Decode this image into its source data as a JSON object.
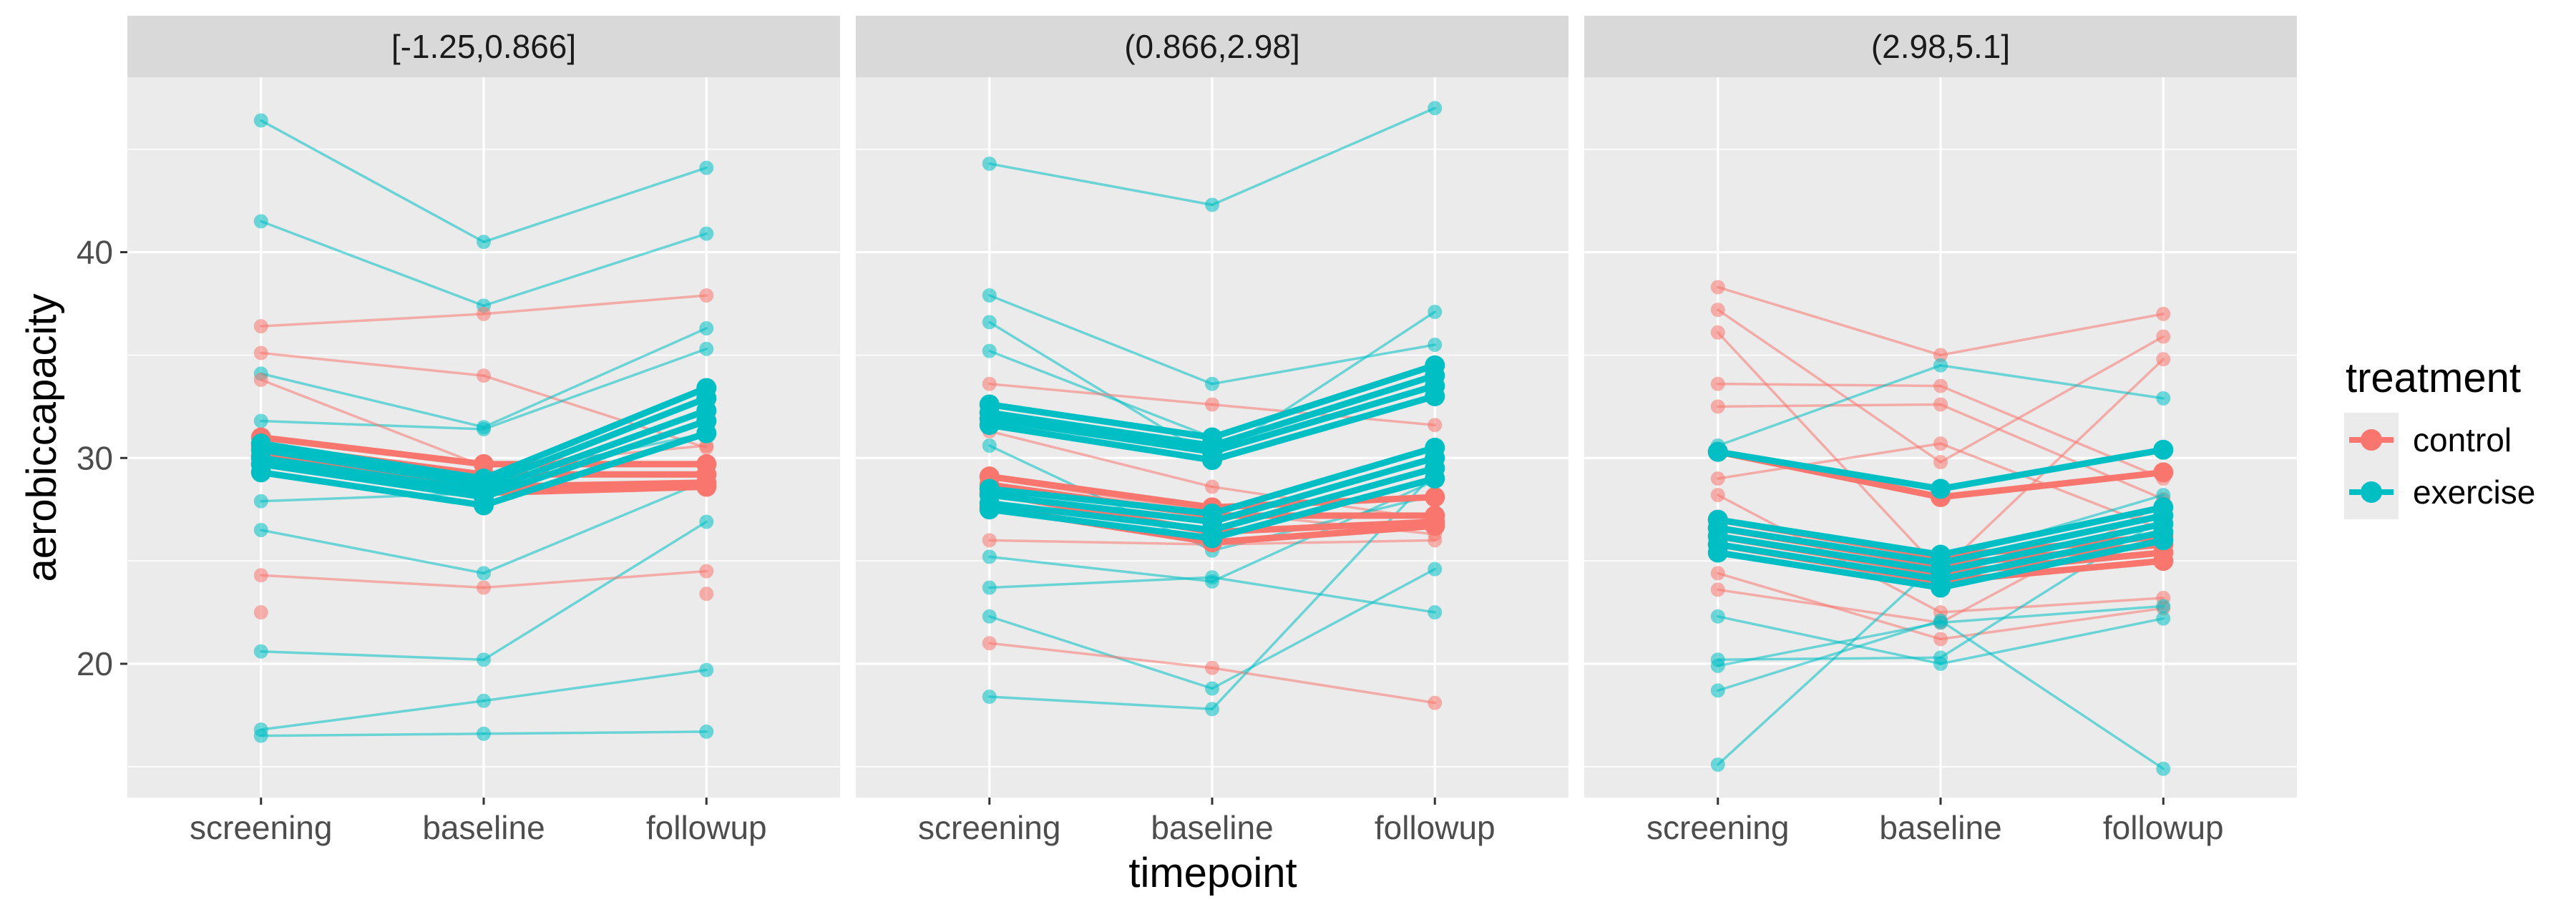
{
  "chart_data": {
    "type": "line",
    "xlabel": "timepoint",
    "ylabel": "aerobiccapacity",
    "x_categories": [
      "screening",
      "baseline",
      "followup"
    ],
    "y_ticks": [
      20,
      30,
      40
    ],
    "ylim": [
      13.5,
      48.5
    ],
    "grid": true,
    "legend_position": "right",
    "legend": {
      "title": "treatment",
      "entries": [
        {
          "label": "control",
          "color": "#F8766D"
        },
        {
          "label": "exercise",
          "color": "#00BFC4"
        }
      ]
    },
    "panels": [
      {
        "label": "[-1.25,0.866]",
        "individual_series": [
          {
            "group": "exercise",
            "values": [
              46.4,
              40.5,
              44.1
            ]
          },
          {
            "group": "exercise",
            "values": [
              41.5,
              37.4,
              40.9
            ]
          },
          {
            "group": "control",
            "values": [
              36.4,
              37.0,
              37.9
            ]
          },
          {
            "group": "control",
            "values": [
              35.1,
              34.0,
              30.5
            ]
          },
          {
            "group": "exercise",
            "values": [
              34.1,
              31.5,
              36.3
            ]
          },
          {
            "group": "exercise",
            "values": [
              31.8,
              31.4,
              35.3
            ]
          },
          {
            "group": "control",
            "values": [
              33.8,
              29.6,
              30.6
            ]
          },
          {
            "group": "exercise",
            "values": [
              30.3,
              29.0,
              31.2
            ]
          },
          {
            "group": "exercise",
            "values": [
              27.9,
              28.3,
              28.8
            ]
          },
          {
            "group": "exercise",
            "values": [
              26.5,
              24.4,
              28.9
            ]
          },
          {
            "group": "exercise",
            "values": [
              20.6,
              20.2,
              26.9
            ]
          },
          {
            "group": "control",
            "values": [
              24.3,
              23.7,
              24.5
            ]
          },
          {
            "group": "control",
            "values": [
              22.5,
              null,
              23.4
            ]
          },
          {
            "group": "exercise",
            "values": [
              16.8,
              18.2,
              19.7
            ]
          },
          {
            "group": "exercise",
            "values": [
              16.5,
              16.6,
              16.7
            ]
          }
        ],
        "fitted_series": [
          {
            "group": "control",
            "values": [
              31.0,
              29.7,
              29.7
            ]
          },
          {
            "group": "control",
            "values": [
              30.6,
              29.2,
              29.2
            ]
          },
          {
            "group": "control",
            "values": [
              30.1,
              28.6,
              28.8
            ]
          },
          {
            "group": "control",
            "values": [
              29.7,
              28.3,
              28.6
            ]
          },
          {
            "group": "exercise",
            "values": [
              30.7,
              29.0,
              33.4
            ]
          },
          {
            "group": "exercise",
            "values": [
              30.4,
              28.7,
              32.9
            ]
          },
          {
            "group": "exercise",
            "values": [
              30.0,
              28.4,
              32.3
            ]
          },
          {
            "group": "exercise",
            "values": [
              29.7,
              28.1,
              31.8
            ]
          },
          {
            "group": "exercise",
            "values": [
              29.3,
              27.7,
              31.2
            ]
          }
        ]
      },
      {
        "label": "(0.866,2.98]",
        "individual_series": [
          {
            "group": "exercise",
            "values": [
              44.3,
              42.3,
              47.0
            ]
          },
          {
            "group": "exercise",
            "values": [
              37.9,
              33.6,
              35.5
            ]
          },
          {
            "group": "exercise",
            "values": [
              36.6,
              30.0,
              37.1
            ]
          },
          {
            "group": "exercise",
            "values": [
              35.2,
              31.0,
              34.6
            ]
          },
          {
            "group": "control",
            "values": [
              33.6,
              32.6,
              31.6
            ]
          },
          {
            "group": "control",
            "values": [
              31.3,
              28.6,
              27.0
            ]
          },
          {
            "group": "control",
            "values": [
              29.0,
              27.4,
              26.3
            ]
          },
          {
            "group": "exercise",
            "values": [
              30.6,
              25.5,
              28.2
            ]
          },
          {
            "group": "control",
            "values": [
              26.0,
              25.8,
              26.0
            ]
          },
          {
            "group": "exercise",
            "values": [
              25.2,
              24.0,
              28.9
            ]
          },
          {
            "group": "exercise",
            "values": [
              23.7,
              24.2,
              22.5
            ]
          },
          {
            "group": "exercise",
            "values": [
              22.3,
              18.8,
              24.6
            ]
          },
          {
            "group": "control",
            "values": [
              21.0,
              19.8,
              18.1
            ]
          },
          {
            "group": "exercise",
            "values": [
              18.4,
              17.8,
              29.3
            ]
          }
        ],
        "fitted_series": [
          {
            "group": "exercise",
            "values": [
              32.6,
              31.0,
              34.5
            ]
          },
          {
            "group": "exercise",
            "values": [
              32.2,
              30.6,
              34.0
            ]
          },
          {
            "group": "exercise",
            "values": [
              31.9,
              30.3,
              33.5
            ]
          },
          {
            "group": "exercise",
            "values": [
              31.6,
              29.9,
              33.0
            ]
          },
          {
            "group": "control",
            "values": [
              29.1,
              27.6,
              28.1
            ]
          },
          {
            "group": "control",
            "values": [
              28.7,
              27.2,
              27.2
            ]
          },
          {
            "group": "control",
            "values": [
              28.3,
              26.4,
              26.9
            ]
          },
          {
            "group": "control",
            "values": [
              27.6,
              25.9,
              26.7
            ]
          },
          {
            "group": "exercise",
            "values": [
              28.5,
              27.3,
              30.5
            ]
          },
          {
            "group": "exercise",
            "values": [
              28.2,
              26.9,
              30.0
            ]
          },
          {
            "group": "exercise",
            "values": [
              27.8,
              26.5,
              29.5
            ]
          },
          {
            "group": "exercise",
            "values": [
              27.5,
              26.1,
              29.0
            ]
          }
        ]
      },
      {
        "label": "(2.98,5.1]",
        "individual_series": [
          {
            "group": "control",
            "values": [
              38.3,
              35.0,
              37.0
            ]
          },
          {
            "group": "control",
            "values": [
              37.2,
              29.8,
              35.9
            ]
          },
          {
            "group": "control",
            "values": [
              36.1,
              24.5,
              34.8
            ]
          },
          {
            "group": "control",
            "values": [
              33.6,
              33.5,
              29.0
            ]
          },
          {
            "group": "control",
            "values": [
              32.5,
              32.6,
              28.0
            ]
          },
          {
            "group": "exercise",
            "values": [
              30.6,
              34.5,
              32.9
            ]
          },
          {
            "group": "control",
            "values": [
              29.0,
              30.7,
              26.5
            ]
          },
          {
            "group": "control",
            "values": [
              28.2,
              22.5,
              23.2
            ]
          },
          {
            "group": "control",
            "values": [
              24.4,
              21.2,
              22.7
            ]
          },
          {
            "group": "control",
            "values": [
              23.6,
              22.0,
              27.8
            ]
          },
          {
            "group": "exercise",
            "values": [
              22.3,
              20.0,
              22.2
            ]
          },
          {
            "group": "exercise",
            "values": [
              20.2,
              20.3,
              27.1
            ]
          },
          {
            "group": "exercise",
            "values": [
              18.7,
              22.1,
              14.9
            ]
          },
          {
            "group": "exercise",
            "values": [
              15.1,
              25.0,
              28.2
            ]
          },
          {
            "group": "exercise",
            "values": [
              19.9,
              22.0,
              22.8
            ]
          }
        ],
        "fitted_series": [
          {
            "group": "control",
            "values": [
              27.0,
              25.2,
              26.2
            ]
          },
          {
            "group": "control",
            "values": [
              26.6,
              24.8,
              25.8
            ]
          },
          {
            "group": "control",
            "values": [
              26.2,
              24.4,
              25.4
            ]
          },
          {
            "group": "control",
            "values": [
              25.8,
              24.0,
              25.0
            ]
          },
          {
            "group": "control",
            "values": [
              30.3,
              28.1,
              29.3
            ]
          },
          {
            "group": "exercise",
            "values": [
              30.3,
              28.5,
              30.4
            ]
          },
          {
            "group": "exercise",
            "values": [
              27.0,
              25.3,
              27.6
            ]
          },
          {
            "group": "exercise",
            "values": [
              26.6,
              24.9,
              27.2
            ]
          },
          {
            "group": "exercise",
            "values": [
              26.2,
              24.5,
              26.8
            ]
          },
          {
            "group": "exercise",
            "values": [
              25.8,
              24.1,
              26.4
            ]
          },
          {
            "group": "exercise",
            "values": [
              25.4,
              23.7,
              26.0
            ]
          }
        ]
      }
    ]
  }
}
